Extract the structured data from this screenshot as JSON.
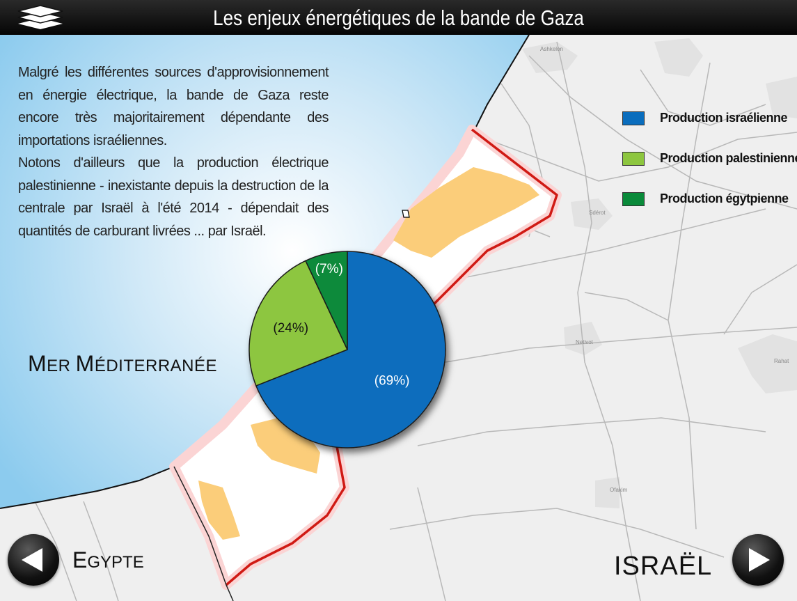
{
  "header": {
    "title": "Les enjeux énergétiques de la bande de Gaza",
    "menu_icon": "layers-icon"
  },
  "intro": {
    "paragraph1": "Malgré les différentes sources d'approvisionnement en énergie électrique, la bande de Gaza reste encore très majoritairement dépendante des importations israéliennes.",
    "paragraph2": "Notons d'ailleurs que la production électrique palestinienne - inexistante depuis la destruction de la centrale par Israël à l'été 2014 - dépendait des quantités de carburant livrées ... par Israël."
  },
  "legend": [
    {
      "label": "Production israélienne",
      "color": "#0a6dbd"
    },
    {
      "label": "Production palestinienne",
      "color": "#8dc63f"
    },
    {
      "label": "Production égytpienne",
      "color": "#0a8a3a"
    }
  ],
  "chart_data": {
    "type": "pie",
    "categories": [
      "Production israélienne",
      "Production palestinienne",
      "Production égytpienne"
    ],
    "values": [
      69,
      24,
      7
    ],
    "labels": [
      "(69%)",
      "(24%)",
      "(7%)"
    ],
    "colors": [
      "#0a6dbd",
      "#8dc63f",
      "#0a8a3a"
    ]
  },
  "map": {
    "sea_label_cap1": "M",
    "sea_label_rest1": "er ",
    "sea_label_cap2": "M",
    "sea_label_rest2": "éditerranée",
    "egypt_cap": "E",
    "egypt_rest": "gypte",
    "israel_label": "ISRAËL",
    "towns": [
      "Ashkelon",
      "Sdérot",
      "Netivot",
      "Rahat",
      "Ofakim"
    ]
  },
  "nav": {
    "prev_icon": "arrow-left-icon",
    "next_icon": "arrow-right-icon"
  }
}
